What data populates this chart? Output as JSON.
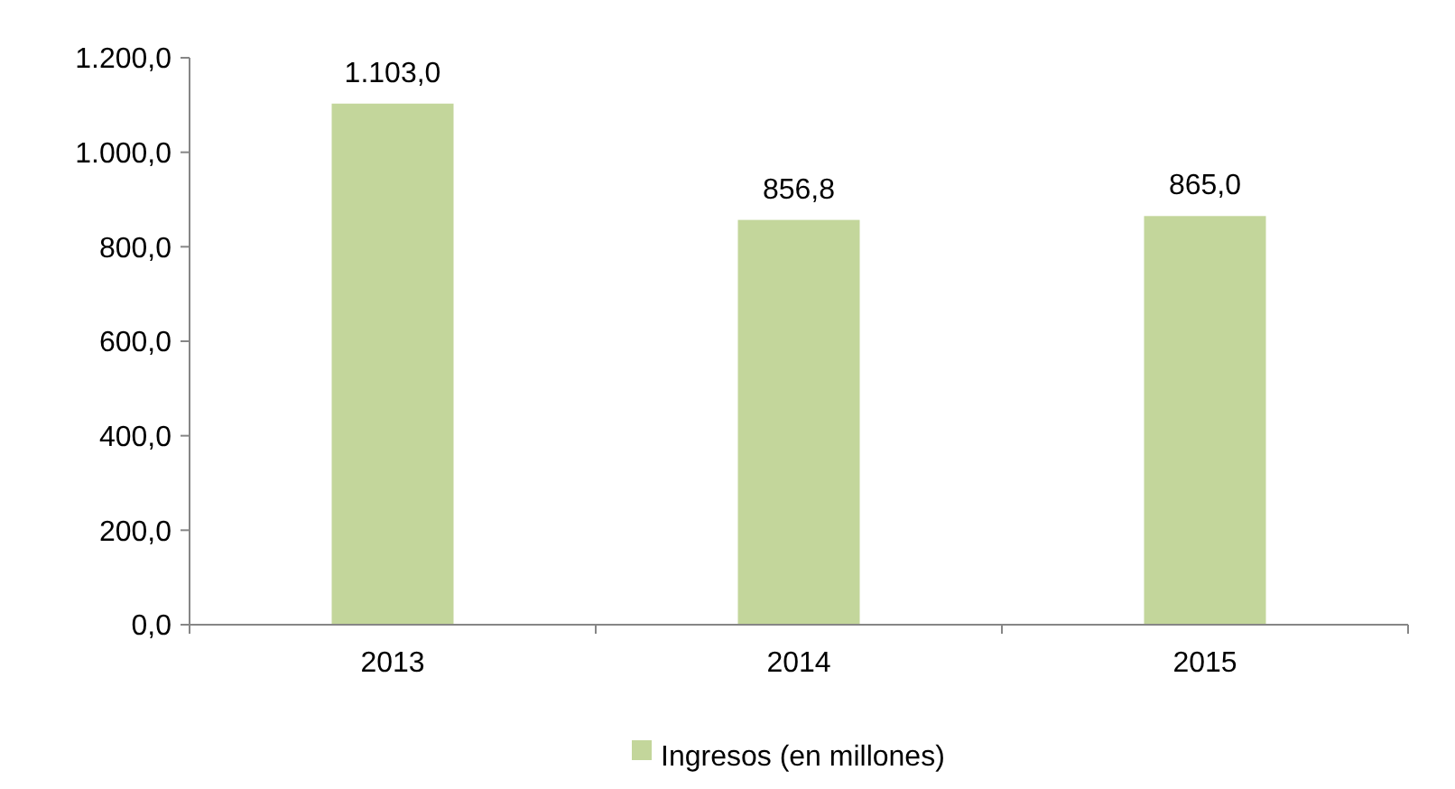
{
  "chart_data": {
    "type": "bar",
    "categories": [
      "2013",
      "2014",
      "2015"
    ],
    "series": [
      {
        "name": "Ingresos (en millones)",
        "color": "#c3d69b",
        "values": [
          1103,
          856.8,
          865
        ],
        "value_labels": [
          "1.103,0",
          "856,8",
          "865,0"
        ]
      }
    ],
    "ylim": [
      0,
      1200
    ],
    "yticks": [
      {
        "value": 0,
        "label": "0,0"
      },
      {
        "value": 200,
        "label": "200,0"
      },
      {
        "value": 400,
        "label": "400,0"
      },
      {
        "value": 600,
        "label": "600,0"
      },
      {
        "value": 800,
        "label": "800,0"
      },
      {
        "value": 1000,
        "label": "1.000,0"
      },
      {
        "value": 1200,
        "label": "1.200,0"
      }
    ],
    "grid": false,
    "legend": "bottom"
  }
}
